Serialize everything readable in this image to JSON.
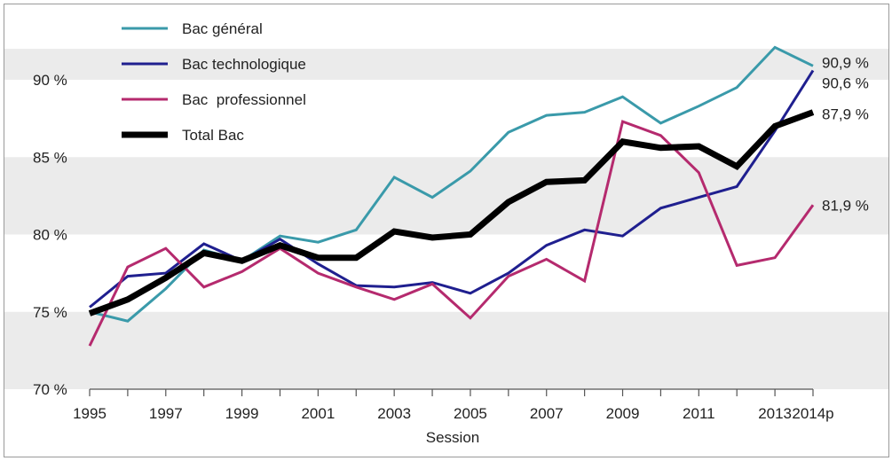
{
  "chart_data": {
    "type": "line",
    "title": "",
    "xlabel": "Session",
    "ylabel": "",
    "x": [
      1995,
      1996,
      1997,
      1998,
      1999,
      2000,
      2001,
      2002,
      2003,
      2004,
      2005,
      2006,
      2007,
      2008,
      2009,
      2010,
      2011,
      2012,
      2013,
      2014
    ],
    "x_tick_labels": [
      "1995",
      "1997",
      "1999",
      "2001",
      "2003",
      "2005",
      "2007",
      "2009",
      "2011",
      "2013",
      "2014p"
    ],
    "x_tick_values": [
      1995,
      1997,
      1999,
      2001,
      2003,
      2005,
      2007,
      2009,
      2011,
      2013,
      2014
    ],
    "y_ticks": [
      70,
      75,
      80,
      85,
      90
    ],
    "y_tick_labels": [
      "70 %",
      "75 %",
      "80 %",
      "85 %",
      "90 %"
    ],
    "ylim": [
      70,
      92
    ],
    "grid": "alternating horizontal bands",
    "legend_position": "top-left",
    "series": [
      {
        "name": "Bac général",
        "color": "#3a9aaa",
        "width": 3,
        "values": [
          75.0,
          74.4,
          76.5,
          79.0,
          78.3,
          79.9,
          79.5,
          80.3,
          83.7,
          82.4,
          84.1,
          86.6,
          87.7,
          87.9,
          88.9,
          87.2,
          88.3,
          89.5,
          92.1,
          90.9
        ],
        "end_label": "90,9 %"
      },
      {
        "name": "Bac technologique",
        "color": "#1f1f8f",
        "width": 3,
        "values": [
          75.3,
          77.3,
          77.5,
          79.4,
          78.3,
          79.7,
          78.1,
          76.7,
          76.6,
          76.9,
          76.2,
          77.5,
          79.3,
          80.3,
          79.9,
          81.7,
          82.4,
          83.1,
          86.7,
          90.6
        ],
        "end_label": "90,6 %"
      },
      {
        "name": "Bac  professionnel",
        "color": "#b52a6e",
        "width": 3,
        "values": [
          72.8,
          77.9,
          79.1,
          76.6,
          77.6,
          79.1,
          77.5,
          76.6,
          75.8,
          76.8,
          74.6,
          77.3,
          78.4,
          77.0,
          87.3,
          86.4,
          84.0,
          78.0,
          78.5,
          81.9
        ],
        "end_label": "81,9 %"
      },
      {
        "name": "Total Bac",
        "color": "#000000",
        "width": 7,
        "values": [
          74.9,
          75.8,
          77.2,
          78.8,
          78.3,
          79.3,
          78.5,
          78.5,
          80.2,
          79.8,
          80.0,
          82.1,
          83.4,
          83.5,
          86.0,
          85.6,
          85.7,
          84.4,
          87.0,
          87.9
        ],
        "end_label": "87,9 %"
      }
    ]
  }
}
